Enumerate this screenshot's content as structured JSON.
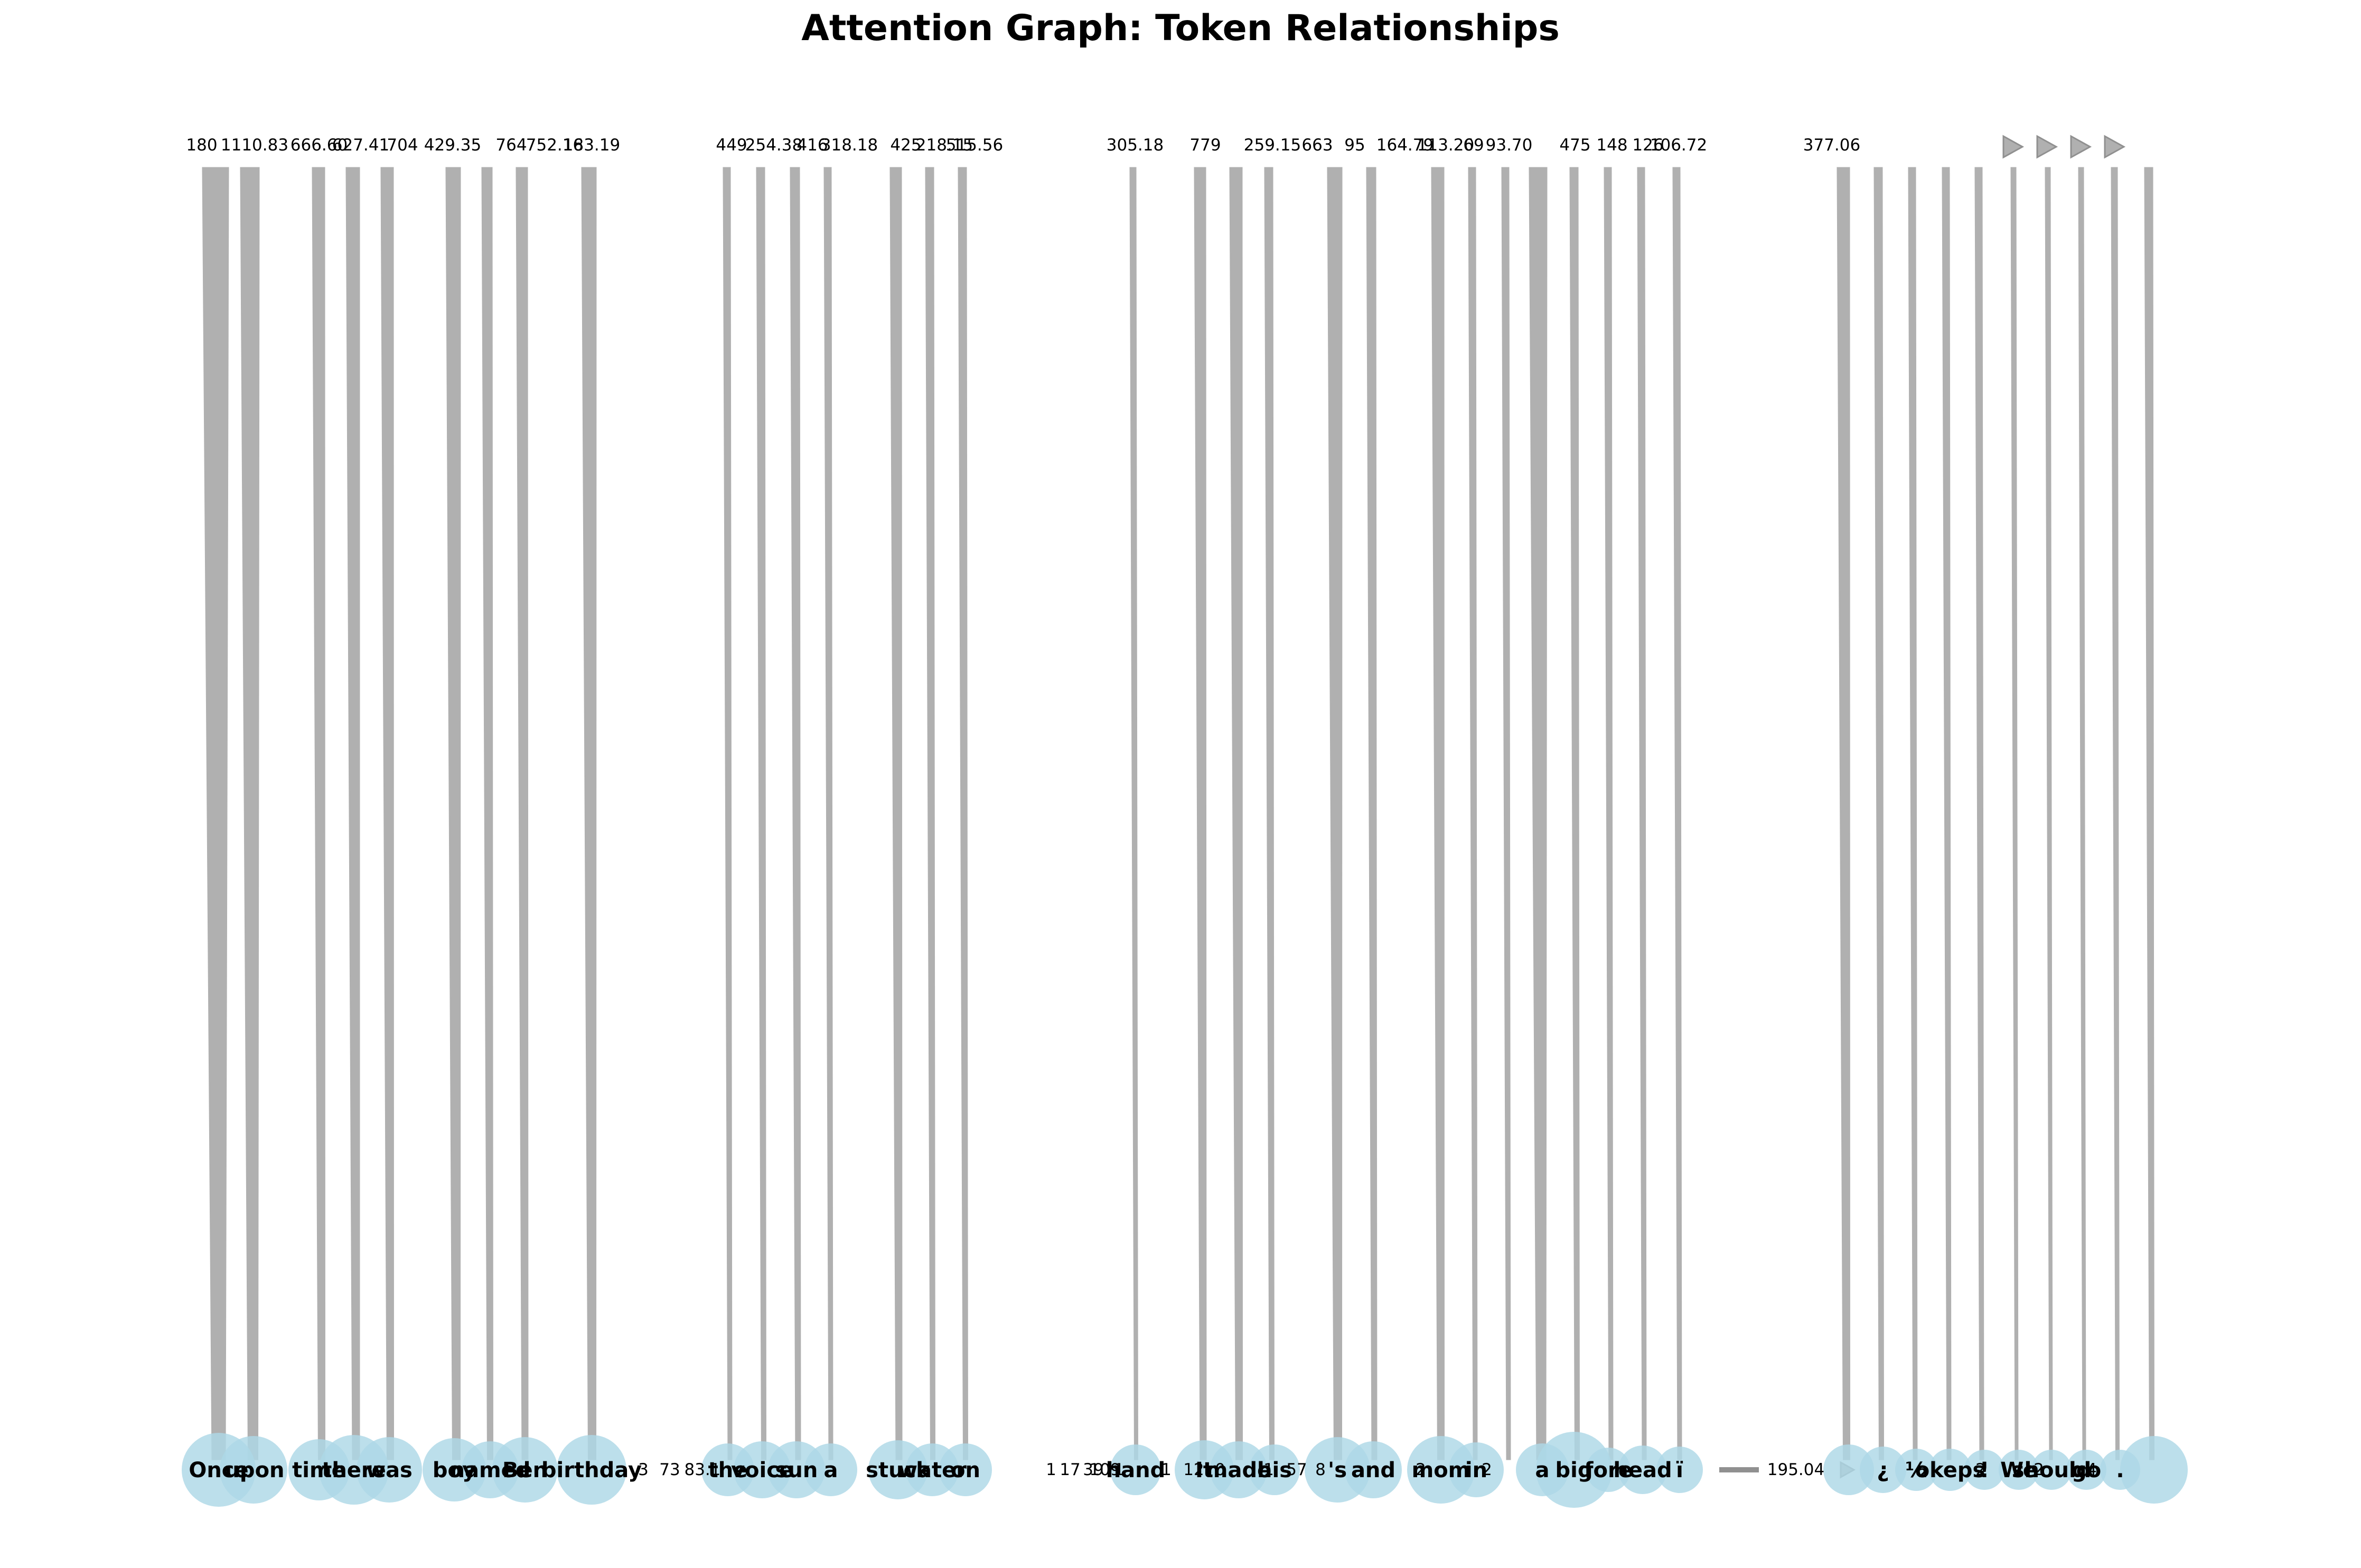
{
  "title": "Attention Graph: Token Relationships",
  "colors": {
    "node": "#add8e6",
    "edge": "#b0b0b0",
    "edge_dark": "#909090",
    "text": "#000000"
  },
  "chart_data": {
    "type": "attention-graph",
    "title": "Attention Graph: Token Relationships",
    "tokens": [
      "Once",
      "upon",
      "time",
      "there",
      "was",
      "boy",
      "named",
      "Ben",
      "birthday",
      "the",
      "voice",
      "sun",
      "a",
      "stuck",
      "water",
      "on",
      "hand",
      "It",
      "made",
      "his",
      "'s",
      "and",
      "mom",
      "in",
      "a",
      "big",
      "fore",
      "head",
      "ï",
      "¿",
      "½",
      "okeps",
      "!",
      "We",
      "should",
      "go",
      "."
    ],
    "edge_values": [
      "180",
      "1110.83",
      "666.60",
      "627.41",
      "704",
      "429.35",
      "764",
      "752.16",
      "183.19",
      "449",
      "254.38",
      "416",
      "318.18",
      "425",
      "218.15",
      "515.56",
      "305.18",
      "779",
      "259.15",
      "663",
      "95",
      "164.79",
      "113.20",
      "69",
      "93.70",
      "475",
      "148",
      "126",
      "106.72",
      "377.06"
    ],
    "bottom_labels": [
      "3",
      "73",
      "83.1",
      "1",
      "17",
      "39",
      "109",
      "1",
      "1",
      "12",
      "0",
      "1",
      "57",
      "8",
      "195.04",
      "2",
      "2",
      "2",
      "2",
      "4"
    ],
    "horizontal_edge_value": "195.04"
  }
}
